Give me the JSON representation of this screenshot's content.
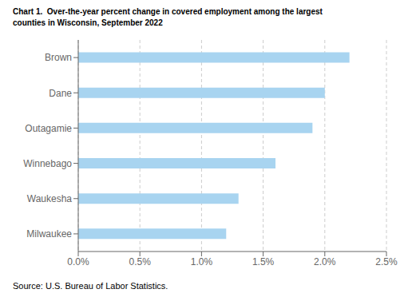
{
  "chart_data": {
    "type": "bar",
    "orientation": "horizontal",
    "title": "Chart 1.  Over-the-year percent change in covered employment among the largest\ncounties in Wisconsin, September 2022",
    "categories": [
      "Milwaukee",
      "Waukesha",
      "Winnebago",
      "Outagamie",
      "Dane",
      "Brown"
    ],
    "values": [
      0.012,
      0.013,
      0.016,
      0.019,
      0.02,
      0.022
    ],
    "color": "#a8d4f0",
    "xlim": [
      0,
      0.025
    ],
    "xticks": [
      {
        "value": 0.0,
        "label": "0.0%"
      },
      {
        "value": 0.005,
        "label": "0.5%"
      },
      {
        "value": 0.01,
        "label": "1.0%"
      },
      {
        "value": 0.015,
        "label": "1.5%"
      },
      {
        "value": 0.02,
        "label": "2.0%"
      },
      {
        "value": 0.025,
        "label": "2.5%"
      }
    ],
    "grid": true,
    "annotations": [
      "Source: U.S. Bureau of Labor Statistics."
    ]
  }
}
